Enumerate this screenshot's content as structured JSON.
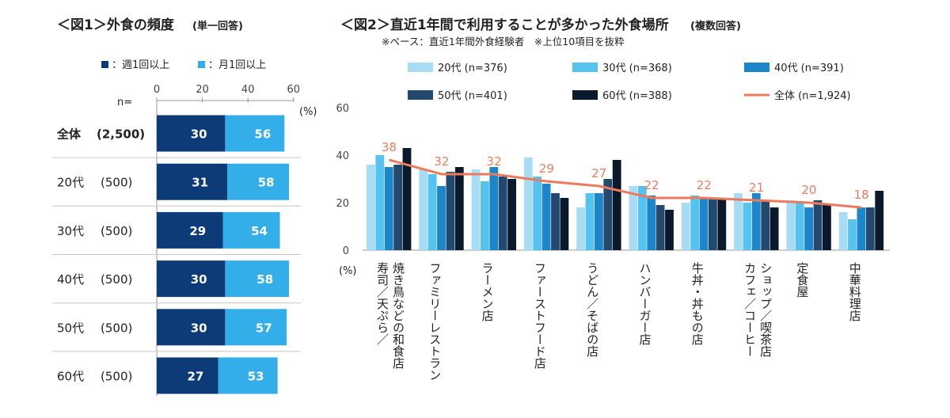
{
  "colors": {
    "weekly": "#0d3b78",
    "monthly": "#33aee8",
    "age20": "#a8dcf5",
    "age30": "#54c3f0",
    "age40": "#1c86c8",
    "age50": "#24496f",
    "age60": "#0a1a2c",
    "total_line": "#ec7b5e",
    "separator": "#c6c6c6"
  },
  "chart_data": [
    {
      "type": "bar",
      "title": "＜図1＞外食の頻度",
      "title_note": "(単一回答)",
      "axis_ticks": [
        "0",
        "20",
        "40",
        "60"
      ],
      "xlim": [
        0,
        60
      ],
      "unit": "(%)",
      "n_label": "n=",
      "legend": [
        "：週1回以上",
        "：月1回以上"
      ],
      "rows": [
        {
          "label": "全体",
          "n": "(2,500)",
          "weekly": 30,
          "monthly": 56
        },
        {
          "label": "20代",
          "n": "(500)",
          "weekly": 31,
          "monthly": 58
        },
        {
          "label": "30代",
          "n": "(500)",
          "weekly": 29,
          "monthly": 54
        },
        {
          "label": "40代",
          "n": "(500)",
          "weekly": 30,
          "monthly": 58
        },
        {
          "label": "50代",
          "n": "(500)",
          "weekly": 30,
          "monthly": 57
        },
        {
          "label": "60代",
          "n": "(500)",
          "weekly": 27,
          "monthly": 53
        }
      ]
    },
    {
      "type": "bar",
      "title": "＜図2＞直近1年間で利用することが多かった外食場所",
      "title_note": "(複数回答)",
      "subtitle": "※ベース：直近1年間外食経験者　※上位10項目を抜粋",
      "ylim": [
        0,
        60
      ],
      "yticks": [
        "60",
        "40",
        "20",
        "0"
      ],
      "ylabel": "(%)",
      "categories": [
        "寿司／天ぷら／焼き鳥などの和食店",
        "ファミリーレストラン",
        "ラーメン店",
        "ファーストフード店",
        "うどん／そばの店",
        "ハンバーガー店",
        "牛丼・丼もの店",
        "カフェ／コーヒーショップ／喫茶店",
        "定食屋",
        "中華料理店"
      ],
      "category_lines": [
        [
          "寿司／天ぷら／",
          "焼き鳥などの和食店"
        ],
        [
          "ファミリーレストラン"
        ],
        [
          "ラーメン店"
        ],
        [
          "ファーストフード店"
        ],
        [
          "うどん／そばの店"
        ],
        [
          "ハンバーガー店"
        ],
        [
          "牛丼・丼もの店"
        ],
        [
          "カフェ／コーヒー",
          "ショップ／喫茶店"
        ],
        [
          "定食屋"
        ],
        [
          "中華料理店"
        ]
      ],
      "series": [
        {
          "name": "20代 (n=376)",
          "values": [
            36,
            34,
            34,
            39,
            18,
            27,
            20,
            24,
            21,
            16
          ]
        },
        {
          "name": "30代 (n=368)",
          "values": [
            40,
            32,
            29,
            31,
            24,
            27,
            23,
            20,
            20,
            13
          ]
        },
        {
          "name": "40代 (n=391)",
          "values": [
            35,
            27,
            35,
            28,
            24,
            23,
            22,
            24,
            18,
            18
          ]
        },
        {
          "name": "50代 (n=401)",
          "values": [
            36,
            33,
            31,
            24,
            30,
            19,
            22,
            21,
            21,
            18
          ]
        },
        {
          "name": "60代 (n=388)",
          "values": [
            43,
            35,
            30,
            22,
            38,
            17,
            22,
            18,
            19,
            25
          ]
        }
      ],
      "total": {
        "name": "全体 (n=1,924)",
        "values": [
          38,
          32,
          32,
          29,
          27,
          22,
          22,
          21,
          20,
          18
        ]
      }
    }
  ]
}
